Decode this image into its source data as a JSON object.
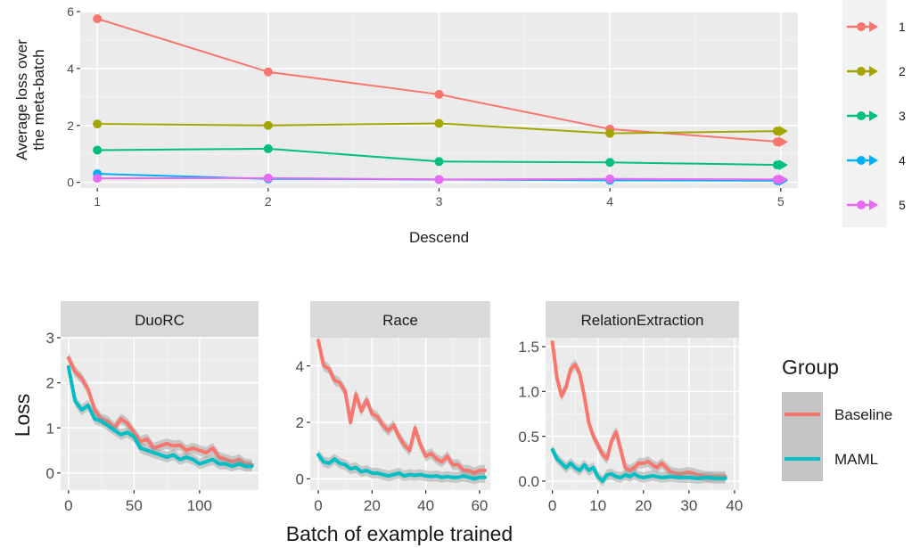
{
  "chart_data": [
    {
      "type": "line",
      "title": "",
      "xlabel": "Descend",
      "ylabel": [
        "Average loss over",
        "the meta-batch"
      ],
      "x": [
        1,
        2,
        3,
        4,
        5
      ],
      "xticks": [
        1,
        2,
        3,
        4,
        5
      ],
      "yticks": [
        0,
        2,
        4,
        6
      ],
      "xlim": [
        0.9,
        5.1
      ],
      "ylim": [
        -0.2,
        6.0
      ],
      "grid": true,
      "legend_position": "right",
      "series": [
        {
          "name": "1",
          "color": "#F8766D",
          "values": [
            5.75,
            3.88,
            3.09,
            1.87,
            1.42
          ]
        },
        {
          "name": "2",
          "color": "#A3A500",
          "values": [
            2.05,
            2.0,
            2.07,
            1.72,
            1.8
          ]
        },
        {
          "name": "3",
          "color": "#00BF7D",
          "values": [
            1.13,
            1.18,
            0.73,
            0.7,
            0.61
          ]
        },
        {
          "name": "4",
          "color": "#00B0F6",
          "values": [
            0.3,
            0.12,
            0.1,
            0.07,
            0.06
          ]
        },
        {
          "name": "5",
          "color": "#E76BF3",
          "values": [
            0.14,
            0.15,
            0.1,
            0.12,
            0.1
          ]
        }
      ]
    },
    {
      "type": "line",
      "title": "",
      "xlabel": "Batch of example trained",
      "ylabel": "Loss",
      "grid": true,
      "legend_title": "Group",
      "legend_position": "right",
      "group_names": [
        "Baseline",
        "MAML"
      ],
      "group_colors": [
        "#F8766D",
        "#00BFC4"
      ],
      "facets": [
        {
          "title": "DuoRC",
          "xlim": [
            -6,
            145
          ],
          "ylim": [
            -0.38,
            3.0
          ],
          "xticks": [
            0,
            50,
            100
          ],
          "yticks": [
            0,
            1,
            2,
            3
          ],
          "series": [
            {
              "name": "Baseline",
              "color": "#F8766D",
              "x": [
                0,
                5,
                10,
                15,
                20,
                25,
                30,
                35,
                40,
                45,
                50,
                55,
                60,
                65,
                70,
                75,
                80,
                85,
                90,
                95,
                100,
                105,
                110,
                115,
                120,
                125,
                130,
                135,
                140
              ],
              "values": [
                2.55,
                2.25,
                2.1,
                1.85,
                1.4,
                1.2,
                1.15,
                1.0,
                1.2,
                1.1,
                0.9,
                0.7,
                0.75,
                0.55,
                0.6,
                0.65,
                0.6,
                0.62,
                0.5,
                0.55,
                0.5,
                0.45,
                0.55,
                0.35,
                0.3,
                0.25,
                0.3,
                0.2,
                0.18
              ]
            },
            {
              "name": "MAML",
              "color": "#00BFC4",
              "x": [
                0,
                5,
                10,
                15,
                20,
                25,
                30,
                35,
                40,
                45,
                50,
                55,
                60,
                65,
                70,
                75,
                80,
                85,
                90,
                95,
                100,
                105,
                110,
                115,
                120,
                125,
                130,
                135,
                140
              ],
              "values": [
                2.35,
                1.6,
                1.4,
                1.5,
                1.2,
                1.15,
                1.05,
                0.95,
                0.85,
                0.9,
                0.8,
                0.55,
                0.5,
                0.45,
                0.4,
                0.35,
                0.4,
                0.3,
                0.35,
                0.3,
                0.2,
                0.25,
                0.3,
                0.2,
                0.2,
                0.15,
                0.2,
                0.15,
                0.15
              ]
            }
          ]
        },
        {
          "title": "Race",
          "xlim": [
            -3,
            64
          ],
          "ylim": [
            -0.4,
            5.0
          ],
          "xticks": [
            0,
            20,
            40,
            60
          ],
          "yticks": [
            0,
            2,
            4
          ],
          "series": [
            {
              "name": "Baseline",
              "color": "#F8766D",
              "x": [
                0,
                2,
                4,
                6,
                8,
                10,
                12,
                14,
                16,
                18,
                20,
                22,
                24,
                26,
                28,
                30,
                32,
                34,
                36,
                38,
                40,
                42,
                44,
                46,
                48,
                50,
                52,
                54,
                56,
                58,
                60,
                62
              ],
              "values": [
                4.9,
                4.0,
                3.9,
                3.5,
                3.4,
                3.1,
                2.0,
                3.0,
                2.4,
                2.8,
                2.3,
                2.2,
                1.9,
                1.7,
                1.9,
                1.5,
                1.2,
                1.0,
                1.8,
                1.2,
                0.8,
                0.9,
                0.7,
                0.6,
                0.8,
                0.5,
                0.5,
                0.3,
                0.3,
                0.2,
                0.3,
                0.3
              ]
            },
            {
              "name": "MAML",
              "color": "#00BFC4",
              "x": [
                0,
                2,
                4,
                6,
                8,
                10,
                12,
                14,
                16,
                18,
                20,
                22,
                24,
                26,
                28,
                30,
                32,
                34,
                36,
                38,
                40,
                42,
                44,
                46,
                48,
                50,
                52,
                54,
                56,
                58,
                60,
                62
              ],
              "values": [
                0.85,
                0.6,
                0.55,
                0.7,
                0.55,
                0.5,
                0.35,
                0.4,
                0.25,
                0.3,
                0.2,
                0.2,
                0.15,
                0.1,
                0.15,
                0.2,
                0.1,
                0.15,
                0.12,
                0.15,
                0.1,
                0.08,
                0.1,
                0.05,
                0.08,
                0.05,
                0.05,
                0.1,
                0.05,
                0.0,
                0.05,
                0.05
              ]
            }
          ]
        },
        {
          "title": "RelationExtraction",
          "xlim": [
            -1.5,
            41
          ],
          "ylim": [
            -0.1,
            1.6
          ],
          "xticks": [
            0,
            10,
            20,
            30,
            40
          ],
          "yticks": [
            0.0,
            0.5,
            1.0,
            1.5
          ],
          "series": [
            {
              "name": "Baseline",
              "color": "#F8766D",
              "x": [
                0,
                1,
                2,
                3,
                4,
                5,
                6,
                7,
                8,
                9,
                10,
                11,
                12,
                13,
                14,
                15,
                16,
                17,
                18,
                19,
                20,
                21,
                22,
                23,
                24,
                25,
                26,
                28,
                30,
                32,
                34,
                36,
                38
              ],
              "values": [
                1.55,
                1.15,
                0.95,
                1.05,
                1.25,
                1.3,
                1.2,
                0.95,
                0.65,
                0.5,
                0.4,
                0.3,
                0.25,
                0.45,
                0.55,
                0.35,
                0.15,
                0.12,
                0.15,
                0.2,
                0.2,
                0.22,
                0.18,
                0.15,
                0.2,
                0.15,
                0.1,
                0.08,
                0.1,
                0.07,
                0.05,
                0.05,
                0.05
              ]
            },
            {
              "name": "MAML",
              "color": "#00BFC4",
              "x": [
                0,
                1,
                2,
                3,
                4,
                5,
                6,
                7,
                8,
                9,
                10,
                11,
                12,
                13,
                14,
                15,
                16,
                17,
                18,
                19,
                20,
                22,
                24,
                26,
                28,
                30,
                32,
                34,
                36,
                38
              ],
              "values": [
                0.35,
                0.25,
                0.2,
                0.15,
                0.2,
                0.15,
                0.12,
                0.18,
                0.12,
                0.15,
                0.05,
                0.0,
                0.07,
                0.08,
                0.05,
                0.04,
                0.07,
                0.05,
                0.08,
                0.05,
                0.04,
                0.06,
                0.04,
                0.05,
                0.04,
                0.04,
                0.03,
                0.04,
                0.03,
                0.03
              ]
            }
          ]
        }
      ]
    }
  ]
}
